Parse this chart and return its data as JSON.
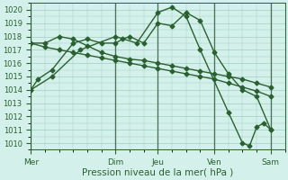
{
  "xlabel": "Pression niveau de la mer( hPa )",
  "ylim": [
    1009.5,
    1020.5
  ],
  "yticks": [
    1010,
    1011,
    1012,
    1013,
    1014,
    1015,
    1016,
    1017,
    1018,
    1019,
    1020
  ],
  "bg_color": "#d4f0ea",
  "grid_color": "#9ecfbf",
  "line_color": "#2a6030",
  "vline_color": "#4a7055",
  "xtick_labels": [
    "Mer",
    "Dim",
    "Jeu",
    "Ven",
    "Sam"
  ],
  "xtick_positions": [
    0,
    6,
    9,
    13,
    17
  ],
  "xlim": [
    0,
    18
  ],
  "series": [
    {
      "x": [
        0,
        0.5,
        1.5,
        3,
        4,
        5,
        6,
        6.5,
        7,
        8,
        9,
        10,
        11,
        12,
        13,
        14,
        15,
        16,
        17
      ],
      "y": [
        1014.0,
        1014.8,
        1015.5,
        1017.5,
        1017.8,
        1017.5,
        1017.5,
        1017.8,
        1018.0,
        1017.5,
        1019.0,
        1018.8,
        1019.8,
        1019.2,
        1016.8,
        1015.2,
        1014.0,
        1013.5,
        1011.0
      ]
    },
    {
      "x": [
        0,
        1,
        2,
        3,
        4,
        5,
        6,
        7,
        8,
        9,
        10,
        11,
        12,
        13,
        14,
        15,
        16,
        17
      ],
      "y": [
        1017.5,
        1017.5,
        1018.0,
        1017.8,
        1017.3,
        1016.8,
        1016.5,
        1016.3,
        1016.2,
        1016.0,
        1015.8,
        1015.6,
        1015.4,
        1015.2,
        1015.0,
        1014.8,
        1014.5,
        1014.2
      ]
    },
    {
      "x": [
        0,
        1.5,
        3.5,
        6,
        7.5,
        9,
        10,
        11,
        12,
        14,
        15,
        15.5,
        16,
        16.5,
        17
      ],
      "y": [
        1014.0,
        1015.0,
        1017.0,
        1018.0,
        1017.5,
        1019.8,
        1020.2,
        1019.5,
        1017.0,
        1012.3,
        1010.0,
        1009.8,
        1011.2,
        1011.5,
        1011.0
      ]
    },
    {
      "x": [
        0,
        1,
        2,
        3,
        4,
        5,
        6,
        7,
        8,
        9,
        10,
        11,
        12,
        13,
        14,
        15,
        16,
        17
      ],
      "y": [
        1017.5,
        1017.2,
        1017.0,
        1016.8,
        1016.6,
        1016.4,
        1016.2,
        1016.0,
        1015.8,
        1015.6,
        1015.4,
        1015.2,
        1015.0,
        1014.8,
        1014.5,
        1014.2,
        1013.9,
        1013.5
      ]
    }
  ],
  "vlines": [
    0,
    6,
    9,
    13,
    17
  ],
  "marker": "D",
  "markersize": 2.5,
  "linewidth": 1.0,
  "ytick_fontsize": 6,
  "xtick_fontsize": 6.5,
  "xlabel_fontsize": 7.5
}
